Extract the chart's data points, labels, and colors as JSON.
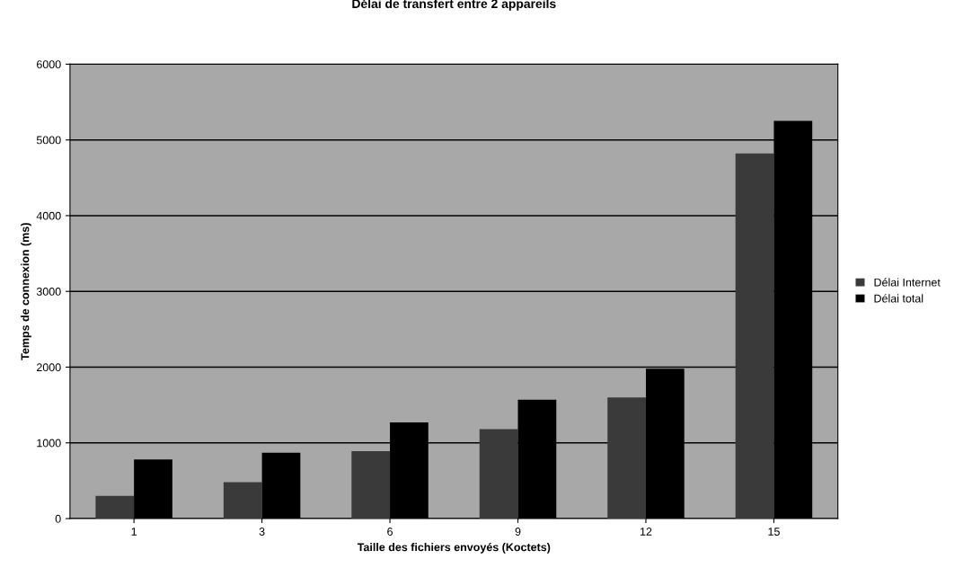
{
  "chart_data": {
    "type": "bar",
    "title": "Délai de transfert entre 2 appareils",
    "xlabel": "Taille des fichiers envoyés (Koctets)",
    "ylabel": "Temps de connexion (ms)",
    "categories": [
      "1",
      "3",
      "6",
      "9",
      "12",
      "15"
    ],
    "series": [
      {
        "name": "Délai Internet",
        "color": "#3a3a3a",
        "values": [
          300,
          480,
          890,
          1180,
          1600,
          4820
        ]
      },
      {
        "name": "Délai total",
        "color": "#000000",
        "values": [
          780,
          870,
          1270,
          1570,
          1980,
          5250
        ]
      }
    ],
    "ylim": [
      0,
      6000
    ],
    "yticks": [
      0,
      1000,
      2000,
      3000,
      4000,
      5000,
      6000
    ],
    "grid": "y",
    "legend": "right"
  }
}
